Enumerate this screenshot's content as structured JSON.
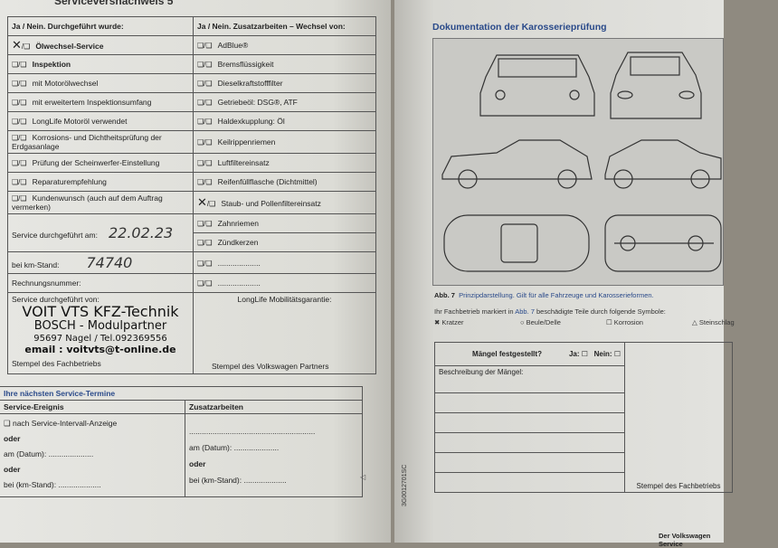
{
  "left": {
    "header": "Serviceversnachweis 5",
    "col1_header": "Ja / Nein. Durchgeführt wurde:",
    "col2_header": "Ja / Nein. Zusatzarbeiten – Wechsel von:",
    "checkbox_marker": "❑/❑",
    "services": [
      {
        "label": "Ölwechsel-Service",
        "bold": true,
        "checked": true
      },
      {
        "label": "Inspektion",
        "bold": true,
        "checked": false
      },
      {
        "label": "mit Motorölwechsel",
        "checked": false
      },
      {
        "label": "mit erweitertem Inspektionsumfang",
        "checked": false
      },
      {
        "label": "LongLife Motoröl verwendet",
        "checked": false
      },
      {
        "label": "Korrosions- und Dichtheitsprüfung der Erdgasanlage",
        "checked": false
      },
      {
        "label": "Prüfung der Scheinwerfer-Einstellung",
        "checked": false
      },
      {
        "label": "Reparaturempfehlung",
        "checked": false
      },
      {
        "label": "Kundenwunsch (auch auf dem Auftrag vermerken)",
        "checked": false
      }
    ],
    "extras": [
      {
        "label": "AdBlue®",
        "checked": false
      },
      {
        "label": "Bremsflüssigkeit",
        "checked": false
      },
      {
        "label": "Dieselkraftstofffilter",
        "checked": false
      },
      {
        "label": "Getriebeöl: DSG®, ATF",
        "checked": false
      },
      {
        "label": "Haldexkupplung: Öl",
        "checked": false
      },
      {
        "label": "Keilrippenriemen",
        "checked": false
      },
      {
        "label": "Luftfiltereinsatz",
        "checked": false
      },
      {
        "label": "Reifenfüllflasche (Dichtmittel)",
        "checked": false
      },
      {
        "label": "Staub- und Pollenfiltereinsatz",
        "checked": true
      },
      {
        "label": "Zahnriemen",
        "checked": false
      },
      {
        "label": "Zündkerzen",
        "checked": false
      },
      {
        "label": "....................",
        "checked": false
      },
      {
        "label": "....................",
        "checked": false
      }
    ],
    "service_date_label": "Service durchgeführt am:",
    "service_date": "22.02.23",
    "km_label": "bei km-Stand:",
    "km": "74740",
    "invoice_label": "Rechnungsnummer:",
    "performed_by_label": "Service durchgeführt von:",
    "stamp": [
      "VOIT VTS  KFZ-Technik",
      "BOSCH - Modulpartner",
      "95697 Nagel / Tel.092369556",
      "email : voitvts@t-online.de"
    ],
    "stamp_label": "Stempel des Fachbetriebs",
    "mobility_label": "LongLife Mobilitätsgarantie:",
    "vw_stamp_label": "Stempel des Volkswagen Partners",
    "next": {
      "title": "Ihre nächsten Service-Termine",
      "col1": "Service-Ereignis",
      "col2": "Zusatzarbeiten",
      "interval": "❑ nach Service-Intervall-Anzeige",
      "oder": "oder",
      "date": "am (Datum): .....................",
      "km": "bei (km-Stand): ....................",
      "dots": "..........................................................."
    }
  },
  "right": {
    "title": "Dokumentation der Karosserieprüfung",
    "caption_ref": "Abb. 7",
    "caption": "Prinzipdarstellung. Gilt für alle Fahrzeuge und Karosserieformen.",
    "instr_pre": "Ihr Fachbetrieb markiert in",
    "instr_ref": "Abb. 7",
    "instr_post": "beschädigte Teile durch folgende Symbole:",
    "symbols": [
      "✖ Kratzer",
      "○ Beule/Delle",
      "☐ Korrosion",
      "△ Steinschlag"
    ],
    "defects_q": "Mängel festgestellt?",
    "yes": "Ja:",
    "no": "Nein:",
    "desc": "Beschreibung der Mängel:",
    "stamp_label": "Stempel des Fachbetriebs",
    "code": "3G0012701SC",
    "footer": "Der Volkswagen Service"
  }
}
